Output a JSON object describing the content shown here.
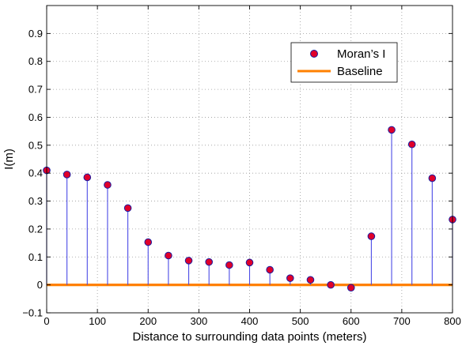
{
  "chart_data": {
    "type": "stem",
    "title": "",
    "xlabel": "Distance to surrounding data points (meters)",
    "ylabel": "I(m)",
    "xlim": [
      0,
      800
    ],
    "ylim": [
      -0.1,
      1.0
    ],
    "xticks": [
      0,
      100,
      200,
      300,
      400,
      500,
      600,
      700,
      800
    ],
    "yticks": [
      -0.1,
      0,
      0.1,
      0.2,
      0.3,
      0.4,
      0.5,
      0.6,
      0.7,
      0.8,
      0.9
    ],
    "ytick_labels": [
      "−0.1",
      "0",
      "0.1",
      "0.2",
      "0.3",
      "0.4",
      "0.5",
      "0.6",
      "0.7",
      "0.8",
      "0.9"
    ],
    "grid": true,
    "legend_position": "top-right",
    "series": [
      {
        "name": "Moran’s I",
        "kind": "stem",
        "marker_fill": "#e0002a",
        "marker_edge": "#1a1aa0",
        "stem_color": "#4b4be6",
        "x": [
          0,
          40,
          80,
          120,
          160,
          200,
          240,
          280,
          320,
          360,
          400,
          440,
          480,
          520,
          560,
          600,
          640,
          680,
          720,
          760,
          800
        ],
        "y": [
          0.41,
          0.395,
          0.385,
          0.358,
          0.275,
          0.153,
          0.105,
          0.087,
          0.082,
          0.071,
          0.08,
          0.054,
          0.024,
          0.018,
          0.0,
          -0.01,
          0.174,
          0.555,
          0.503,
          0.382,
          0.234
        ]
      },
      {
        "name": "Baseline",
        "kind": "line",
        "color": "#ff8000",
        "y": 0
      }
    ]
  }
}
